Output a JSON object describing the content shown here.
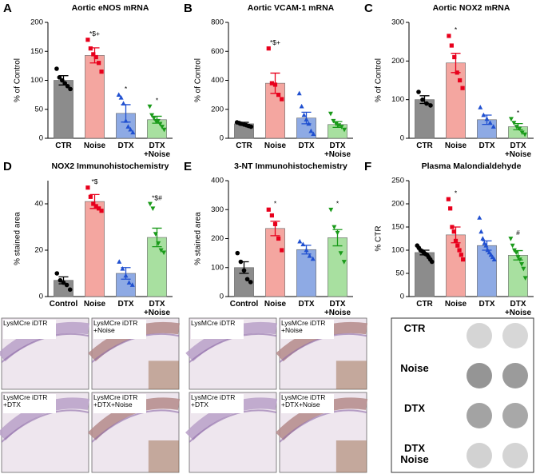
{
  "chart_data": [
    {
      "type": "bar",
      "panel": "A",
      "title": "Aortic eNOS mRNA",
      "y_label": "% of Control",
      "categories": [
        "CTR",
        "Noise",
        "DTX",
        "DTX +Noise"
      ],
      "values": [
        100,
        143,
        43,
        32
      ],
      "errors": [
        8,
        13,
        15,
        6
      ],
      "colors": [
        "#8c8c8c",
        "#f4a6a0",
        "#8eaae4",
        "#a8e0a0"
      ],
      "point_colors": [
        "#000000",
        "#e8001c",
        "#2050d0",
        "#1a9a1a"
      ],
      "points": [
        [
          120,
          105,
          100,
          95,
          90,
          85
        ],
        [
          170,
          155,
          145,
          140,
          130,
          115
        ],
        [
          75,
          70,
          60,
          30,
          20,
          15,
          10
        ],
        [
          55,
          40,
          35,
          30,
          30,
          25,
          20,
          15
        ]
      ],
      "annotations": [
        null,
        "*$+",
        "*",
        "*"
      ],
      "ylim": [
        0,
        200
      ],
      "yticks": [
        0,
        50,
        100,
        150,
        200
      ]
    },
    {
      "type": "bar",
      "panel": "B",
      "title": "Aortic VCAM-1 mRNA",
      "y_label": "% of Control",
      "categories": [
        "CTR",
        "Noise",
        "DTX",
        "DTX +Noise"
      ],
      "values": [
        100,
        380,
        140,
        95
      ],
      "errors": [
        10,
        70,
        40,
        20
      ],
      "colors": [
        "#8c8c8c",
        "#f4a6a0",
        "#8eaae4",
        "#a8e0a0"
      ],
      "point_colors": [
        "#000000",
        "#e8001c",
        "#2050d0",
        "#1a9a1a"
      ],
      "points": [
        [
          110,
          105,
          100,
          95,
          90,
          85,
          80
        ],
        [
          620,
          380,
          370,
          300,
          270
        ],
        [
          310,
          220,
          160,
          130,
          100,
          50,
          30
        ],
        [
          170,
          120,
          100,
          90,
          80,
          60
        ]
      ],
      "annotations": [
        null,
        "*$+",
        null,
        null
      ],
      "ylim": [
        0,
        800
      ],
      "yticks": [
        0,
        200,
        400,
        600,
        800
      ]
    },
    {
      "type": "bar",
      "panel": "C",
      "title": "Aortic NOX2 mRNA",
      "y_label": "% of Control",
      "categories": [
        "CTR",
        "Noise",
        "DTX",
        "DTX +Noise"
      ],
      "values": [
        100,
        195,
        48,
        30
      ],
      "errors": [
        10,
        25,
        12,
        8
      ],
      "colors": [
        "#8c8c8c",
        "#f4a6a0",
        "#8eaae4",
        "#a8e0a0"
      ],
      "point_colors": [
        "#000000",
        "#e8001c",
        "#2050d0",
        "#1a9a1a"
      ],
      "points": [
        [
          120,
          100,
          90,
          85
        ],
        [
          265,
          240,
          210,
          170,
          150,
          130
        ],
        [
          80,
          60,
          50,
          40,
          30
        ],
        [
          50,
          40,
          30,
          25,
          15,
          10
        ]
      ],
      "annotations": [
        null,
        "*",
        null,
        "*"
      ],
      "ylim": [
        0,
        300
      ],
      "yticks": [
        0,
        100,
        200,
        300
      ]
    },
    {
      "type": "bar",
      "panel": "D",
      "title": "NOX2  Immunohistochemistry",
      "y_label": "% stained area",
      "categories": [
        "Control",
        "Noise",
        "DTX",
        "DTX +Noise"
      ],
      "values": [
        7,
        41,
        10,
        25.5
      ],
      "errors": [
        1.5,
        3,
        2.5,
        4
      ],
      "colors": [
        "#8c8c8c",
        "#f4a6a0",
        "#8eaae4",
        "#a8e0a0"
      ],
      "point_colors": [
        "#000000",
        "#e8001c",
        "#2050d0",
        "#1a9a1a"
      ],
      "points": [
        [
          10,
          7,
          6,
          5,
          3
        ],
        [
          47,
          43,
          40,
          39,
          38,
          37
        ],
        [
          15,
          12,
          9,
          6,
          5
        ],
        [
          40,
          38,
          27,
          23,
          20,
          19
        ]
      ],
      "annotations": [
        null,
        "*$",
        null,
        "*$#"
      ],
      "ylim": [
        0,
        50
      ],
      "yticks": [
        0,
        20,
        40
      ]
    },
    {
      "type": "bar",
      "panel": "E",
      "title": "3-NT  Immunohistochemistry",
      "y_label": "% stained area",
      "categories": [
        "Control",
        "Noise",
        "DTX",
        "DTX +Noise"
      ],
      "values": [
        100,
        235,
        162,
        203
      ],
      "errors": [
        20,
        25,
        15,
        28
      ],
      "colors": [
        "#8c8c8c",
        "#f4a6a0",
        "#8eaae4",
        "#a8e0a0"
      ],
      "point_colors": [
        "#000000",
        "#e8001c",
        "#2050d0",
        "#1a9a1a"
      ],
      "points": [
        [
          150,
          120,
          90,
          60,
          50
        ],
        [
          300,
          280,
          250,
          200,
          160
        ],
        [
          190,
          180,
          160,
          140,
          130
        ],
        [
          300,
          240,
          220,
          150,
          120
        ]
      ],
      "annotations": [
        null,
        "*",
        null,
        "*"
      ],
      "ylim": [
        0,
        400
      ],
      "yticks": [
        0,
        100,
        200,
        300,
        400
      ]
    },
    {
      "type": "bar",
      "panel": "F",
      "title": "Plasma Malondialdehyde",
      "y_label": "% CTR",
      "categories": [
        "CTR",
        "Noise",
        "DTX",
        "DTX +Noise"
      ],
      "values": [
        95,
        133,
        110,
        89
      ],
      "errors": [
        5,
        17,
        10,
        10
      ],
      "colors": [
        "#8c8c8c",
        "#f4a6a0",
        "#8eaae4",
        "#a8e0a0"
      ],
      "point_colors": [
        "#000000",
        "#e8001c",
        "#2050d0",
        "#1a9a1a"
      ],
      "points": [
        [
          110,
          105,
          100,
          98,
          95,
          92,
          90,
          85,
          80,
          75
        ],
        [
          210,
          190,
          150,
          140,
          120,
          110,
          100,
          90,
          80
        ],
        [
          170,
          140,
          125,
          115,
          110,
          100,
          95,
          90,
          85,
          80
        ],
        [
          125,
          110,
          100,
          95,
          85,
          80,
          70,
          60,
          40
        ]
      ],
      "annotations": [
        null,
        "*",
        null,
        "#"
      ],
      "ylim": [
        0,
        250
      ],
      "yticks": [
        0,
        50,
        100,
        150,
        200,
        250
      ]
    }
  ],
  "images": {
    "histology_left": [
      "LysMCre iDTR",
      "LysMCre iDTR +Noise",
      "LysMCre iDTR +DTX",
      "LysMCre iDTR +DTX+Noise"
    ],
    "histology_right": [
      "LysMCre iDTR",
      "LysMCre iDTR +Noise",
      "LysMCre iDTR +DTX",
      "LysMCre iDTR +DTX+Noise"
    ],
    "dot_blot_labels": [
      "CTR",
      "Noise",
      "DTX",
      "DTX Noise"
    ]
  }
}
